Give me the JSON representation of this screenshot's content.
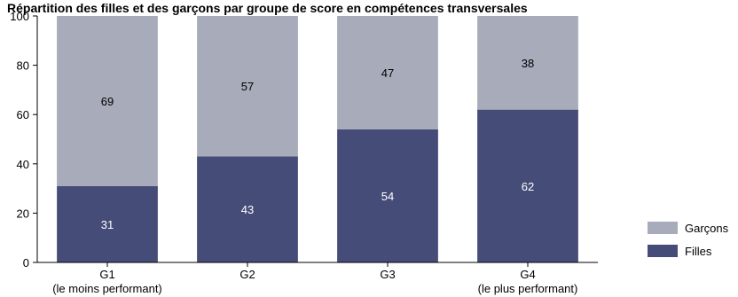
{
  "chart_data": {
    "type": "bar",
    "stacked": true,
    "title": "Répartition des filles et des garçons par groupe de score en compétences transversales",
    "categories": [
      [
        "G1",
        "(le moins performant)"
      ],
      [
        "G2"
      ],
      [
        "G3"
      ],
      [
        "G4",
        "(le plus performant)"
      ]
    ],
    "series": [
      {
        "name": "Filles",
        "values": [
          31,
          43,
          54,
          62
        ],
        "color": "#464c78",
        "label_color": "#ffffff"
      },
      {
        "name": "Garçons",
        "values": [
          69,
          57,
          47,
          38
        ],
        "color": "#a8abb9",
        "label_color": "#000000"
      }
    ],
    "ylim": [
      0,
      100
    ],
    "yticks": [
      "0",
      "20",
      "40",
      "60",
      "80",
      "100"
    ],
    "grid": false,
    "legend_position": "right",
    "legend_order": [
      "Garçons",
      "Filles"
    ]
  }
}
